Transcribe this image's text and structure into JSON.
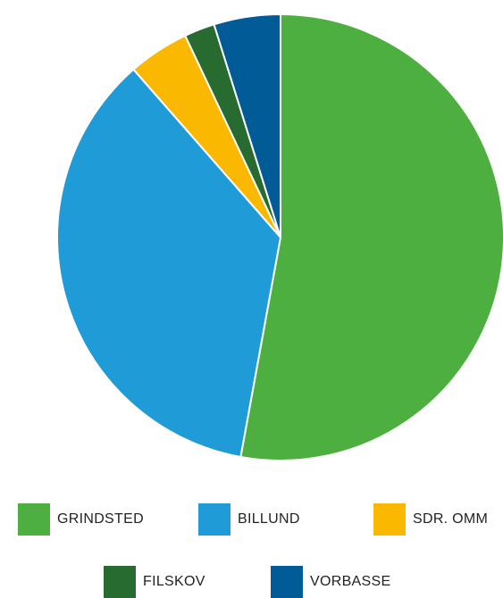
{
  "chart_data": {
    "type": "pie",
    "slices": [
      {
        "name": "GRINDSTED",
        "value": 52.7,
        "color": "#4daf3f"
      },
      {
        "name": "BILLUND",
        "value": 35.6,
        "color": "#1f9cd8"
      },
      {
        "name": "SDR. OMM",
        "value": 4.4,
        "color": "#fbb800"
      },
      {
        "name": "FILSKOV",
        "value": 2.2,
        "color": "#276b30"
      },
      {
        "name": "VORBASSE",
        "value": 4.8,
        "color": "#005b96"
      }
    ],
    "start_angle_deg": 0,
    "direction": "clockwise",
    "legend_position": "bottom"
  },
  "legend": {
    "items": [
      {
        "label": "GRINDSTED",
        "color": "#4daf3f"
      },
      {
        "label": "BILLUND",
        "color": "#1f9cd8"
      },
      {
        "label": "SDR. OMM",
        "color": "#fbb800"
      },
      {
        "label": "FILSKOV",
        "color": "#276b30"
      },
      {
        "label": "VORBASSE",
        "color": "#005b96"
      }
    ]
  }
}
